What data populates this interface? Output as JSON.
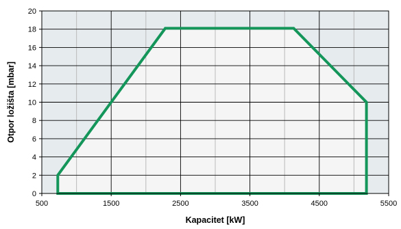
{
  "chart_data": {
    "type": "area",
    "xlabel": "Kapacitet [kW]",
    "ylabel": "Otpor ložišta  [mbar]",
    "xlim": [
      500,
      5500
    ],
    "ylim": [
      0,
      20
    ],
    "x_ticks": [
      500,
      1500,
      2500,
      3500,
      4500,
      5500
    ],
    "x_tick_labels": [
      "500",
      "1500",
      "2500",
      "3500",
      "4500",
      "5500"
    ],
    "y_ticks": [
      0,
      2,
      4,
      6,
      8,
      10,
      12,
      14,
      16,
      18,
      20
    ],
    "y_tick_labels": [
      "0",
      "2",
      "4",
      "6",
      "8",
      "10",
      "12",
      "14",
      "16",
      "18",
      "20"
    ],
    "x_grid_step": 500,
    "y_grid_step": 2,
    "grid": true,
    "series": [
      {
        "x": [
          730,
          730,
          2280,
          4130,
          5180,
          5180,
          730
        ],
        "y": [
          0,
          2,
          18.1,
          18.1,
          10,
          0,
          0
        ]
      }
    ],
    "colors": {
      "outline": "#14955a",
      "inner_fill": "#f5f5f5",
      "outer_fill": "#e6ebee",
      "grid_major": "#000000",
      "grid_minor": "#bfbfbf"
    }
  }
}
